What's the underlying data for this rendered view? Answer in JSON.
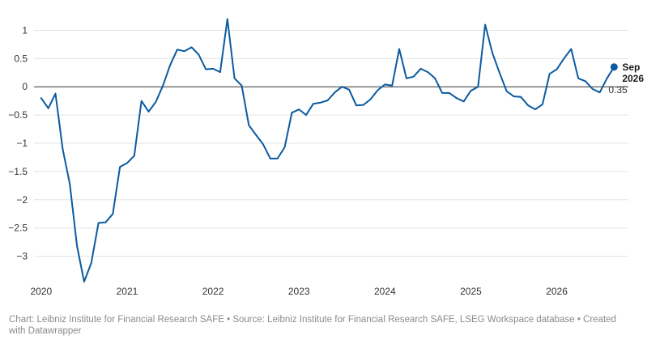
{
  "chart_data": {
    "type": "line",
    "title": "",
    "xlabel": "",
    "ylabel": "",
    "ylim": [
      -3.45,
      1.25
    ],
    "xlim": [
      "2019-12",
      "2026-11"
    ],
    "grid": true,
    "y_ticks": [
      {
        "value": 1,
        "label": "1"
      },
      {
        "value": 0.5,
        "label": "0.5"
      },
      {
        "value": 0,
        "label": "0"
      },
      {
        "value": -0.5,
        "label": "−0.5"
      },
      {
        "value": -1,
        "label": "−1"
      },
      {
        "value": -1.5,
        "label": "−1.5"
      },
      {
        "value": -2,
        "label": "−2"
      },
      {
        "value": -2.5,
        "label": "−2.5"
      },
      {
        "value": -3,
        "label": "−3"
      }
    ],
    "x_ticks": [
      {
        "value": "2020-01",
        "label": "2020"
      },
      {
        "value": "2021-01",
        "label": "2021"
      },
      {
        "value": "2022-01",
        "label": "2022"
      },
      {
        "value": "2023-01",
        "label": "2023"
      },
      {
        "value": "2024-01",
        "label": "2024"
      },
      {
        "value": "2025-01",
        "label": "2025"
      },
      {
        "value": "2026-01",
        "label": "2026"
      }
    ],
    "series": [
      {
        "color": "#0b5aa0",
        "x": [
          "2020-01",
          "2020-02",
          "2020-03",
          "2020-04",
          "2020-05",
          "2020-06",
          "2020-07",
          "2020-08",
          "2020-09",
          "2020-10",
          "2020-11",
          "2020-12",
          "2021-01",
          "2021-02",
          "2021-03",
          "2021-04",
          "2021-05",
          "2021-06",
          "2021-07",
          "2021-08",
          "2021-09",
          "2021-10",
          "2021-11",
          "2021-12",
          "2022-01",
          "2022-02",
          "2022-03",
          "2022-04",
          "2022-05",
          "2022-06",
          "2022-07",
          "2022-08",
          "2022-09",
          "2022-10",
          "2022-11",
          "2022-12",
          "2023-01",
          "2023-02",
          "2023-03",
          "2023-04",
          "2023-05",
          "2023-06",
          "2023-07",
          "2023-08",
          "2023-09",
          "2023-10",
          "2023-11",
          "2023-12",
          "2024-01",
          "2024-02",
          "2024-03",
          "2024-04",
          "2024-05",
          "2024-06",
          "2024-07",
          "2024-08",
          "2024-09",
          "2024-10",
          "2024-11",
          "2024-12",
          "2025-01",
          "2025-02",
          "2025-03",
          "2025-04",
          "2025-05",
          "2025-06",
          "2025-07",
          "2025-08",
          "2025-09",
          "2025-10",
          "2025-11",
          "2025-12",
          "2026-01",
          "2026-02",
          "2026-03",
          "2026-04",
          "2026-05",
          "2026-06",
          "2026-07",
          "2026-08",
          "2026-09"
        ],
        "values": [
          -0.2,
          -0.38,
          -0.12,
          -1.1,
          -1.72,
          -2.82,
          -3.45,
          -3.12,
          -2.41,
          -2.4,
          -2.25,
          -1.42,
          -1.35,
          -1.22,
          -0.25,
          -0.44,
          -0.27,
          0.02,
          0.38,
          0.66,
          0.63,
          0.7,
          0.57,
          0.31,
          0.32,
          0.26,
          1.2,
          0.15,
          0.02,
          -0.68,
          -0.85,
          -1.02,
          -1.27,
          -1.27,
          -1.07,
          -0.46,
          -0.4,
          -0.5,
          -0.3,
          -0.28,
          -0.24,
          -0.1,
          0.0,
          -0.05,
          -0.33,
          -0.32,
          -0.22,
          -0.06,
          0.04,
          0.02,
          0.67,
          0.15,
          0.18,
          0.32,
          0.26,
          0.15,
          -0.11,
          -0.11,
          -0.2,
          -0.26,
          -0.07,
          0.0,
          1.1,
          0.6,
          0.25,
          -0.08,
          -0.17,
          -0.18,
          -0.33,
          -0.4,
          -0.31,
          0.23,
          0.31,
          0.5,
          0.67,
          0.15,
          0.1,
          -0.04,
          -0.1,
          0.15,
          0.35
        ]
      }
    ],
    "end_label": {
      "month": "Sep",
      "year": "2026",
      "value": "0.35"
    }
  },
  "footer": {
    "text": "Chart: Leibniz Institute for Financial Research SAFE • Source: Leibniz Institute for Financial Research SAFE, LSEG Workspace database • Created with Datawrapper"
  }
}
